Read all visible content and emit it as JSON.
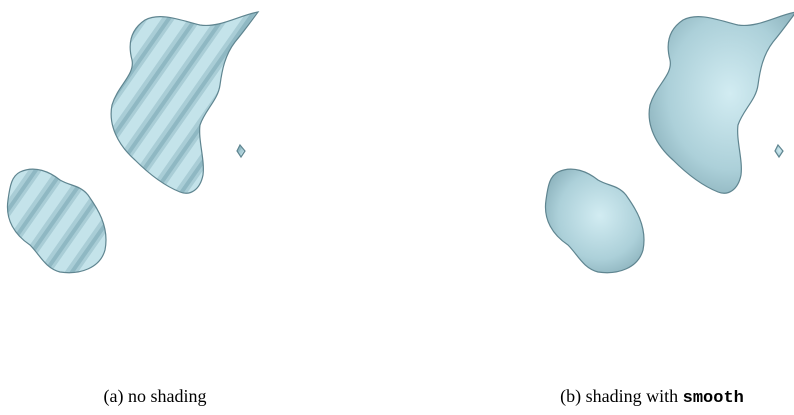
{
  "subfigures": [
    {
      "label": "(a)",
      "caption": "no shading"
    },
    {
      "label": "(b)",
      "caption": "shading with",
      "code": "smooth"
    }
  ]
}
